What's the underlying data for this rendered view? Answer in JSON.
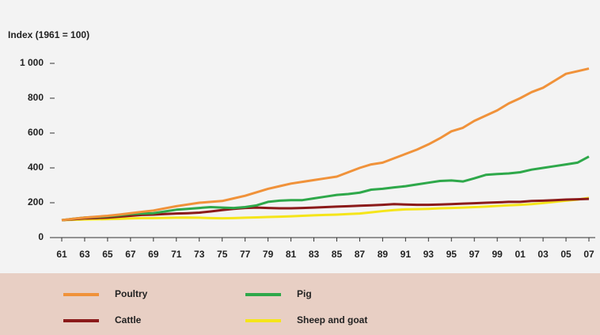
{
  "chart_data": {
    "type": "line",
    "y_axis_label": "Index (1961 = 100)",
    "x": [
      1961,
      1962,
      1963,
      1964,
      1965,
      1966,
      1967,
      1968,
      1969,
      1970,
      1971,
      1972,
      1973,
      1974,
      1975,
      1976,
      1977,
      1978,
      1979,
      1980,
      1981,
      1982,
      1983,
      1984,
      1985,
      1986,
      1987,
      1988,
      1989,
      1990,
      1991,
      1992,
      1993,
      1994,
      1995,
      1996,
      1997,
      1998,
      1999,
      2000,
      2001,
      2002,
      2003,
      2004,
      2005,
      2006,
      2007
    ],
    "series": [
      {
        "name": "Poultry",
        "color": "#f0923a",
        "values": [
          100,
          108,
          115,
          120,
          125,
          132,
          140,
          148,
          155,
          168,
          180,
          190,
          200,
          205,
          210,
          225,
          240,
          260,
          280,
          295,
          310,
          320,
          330,
          340,
          350,
          375,
          400,
          420,
          430,
          455,
          480,
          505,
          535,
          570,
          610,
          630,
          670,
          700,
          730,
          770,
          800,
          835,
          860,
          900,
          940,
          955,
          970
        ]
      },
      {
        "name": "Pig",
        "color": "#2ea84a",
        "values": [
          100,
          108,
          115,
          118,
          122,
          128,
          135,
          138,
          140,
          150,
          160,
          165,
          170,
          175,
          172,
          170,
          175,
          185,
          205,
          212,
          215,
          215,
          225,
          235,
          245,
          250,
          258,
          275,
          280,
          288,
          295,
          305,
          315,
          325,
          328,
          322,
          340,
          360,
          365,
          368,
          375,
          390,
          400,
          410,
          420,
          430,
          465
        ]
      },
      {
        "name": "Cattle",
        "color": "#8b1a1a",
        "values": [
          100,
          105,
          110,
          112,
          115,
          120,
          125,
          130,
          132,
          135,
          138,
          140,
          143,
          150,
          158,
          165,
          170,
          172,
          170,
          168,
          168,
          170,
          172,
          175,
          178,
          180,
          183,
          185,
          188,
          192,
          190,
          188,
          188,
          190,
          192,
          195,
          197,
          200,
          202,
          205,
          205,
          210,
          212,
          215,
          218,
          220,
          222
        ]
      },
      {
        "name": "Sheep and goat",
        "color": "#f5e51a",
        "values": [
          100,
          102,
          104,
          105,
          106,
          108,
          110,
          112,
          112,
          113,
          114,
          115,
          114,
          112,
          111,
          112,
          114,
          116,
          118,
          120,
          122,
          125,
          128,
          130,
          132,
          135,
          138,
          145,
          152,
          158,
          162,
          163,
          165,
          168,
          170,
          172,
          175,
          178,
          182,
          185,
          188,
          192,
          198,
          205,
          212,
          218,
          228
        ]
      }
    ],
    "xlim": [
      1961,
      2007
    ],
    "xticks": [
      {
        "value": 1961,
        "label": "61"
      },
      {
        "value": 1963,
        "label": "63"
      },
      {
        "value": 1965,
        "label": "65"
      },
      {
        "value": 1967,
        "label": "67"
      },
      {
        "value": 1969,
        "label": "69"
      },
      {
        "value": 1971,
        "label": "71"
      },
      {
        "value": 1973,
        "label": "73"
      },
      {
        "value": 1975,
        "label": "75"
      },
      {
        "value": 1977,
        "label": "77"
      },
      {
        "value": 1979,
        "label": "79"
      },
      {
        "value": 1981,
        "label": "81"
      },
      {
        "value": 1983,
        "label": "83"
      },
      {
        "value": 1985,
        "label": "85"
      },
      {
        "value": 1987,
        "label": "87"
      },
      {
        "value": 1989,
        "label": "89"
      },
      {
        "value": 1991,
        "label": "91"
      },
      {
        "value": 1993,
        "label": "93"
      },
      {
        "value": 1995,
        "label": "95"
      },
      {
        "value": 1997,
        "label": "97"
      },
      {
        "value": 1999,
        "label": "99"
      },
      {
        "value": 2001,
        "label": "01"
      },
      {
        "value": 2003,
        "label": "03"
      },
      {
        "value": 2005,
        "label": "05"
      },
      {
        "value": 2007,
        "label": "07"
      }
    ],
    "ylim": [
      0,
      1000
    ],
    "yticks": [
      0,
      200,
      400,
      600,
      800,
      {
        "value": 1000,
        "label": "1 000"
      }
    ]
  }
}
